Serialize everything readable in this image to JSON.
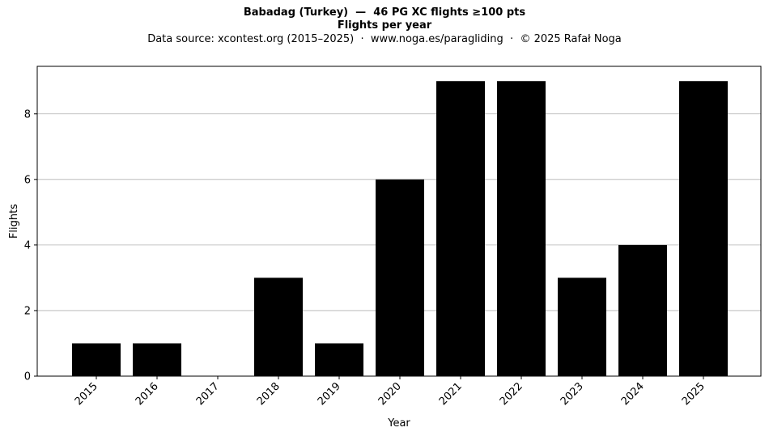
{
  "header": {
    "title": "Babadag (Turkey)  —  46 PG XC flights ≥100 pts",
    "subtitle": "Flights per year",
    "source": "Data source: xcontest.org (2015–2025)  ·  www.noga.es/paragliding  ·  © 2025 Rafał Noga"
  },
  "chart_data": {
    "type": "bar",
    "title": "Babadag (Turkey)  —  46 PG XC flights ≥100 pts",
    "subtitle": "Flights per year",
    "xlabel": "Year",
    "ylabel": "Flights",
    "categories": [
      "2015",
      "2016",
      "2017",
      "2018",
      "2019",
      "2020",
      "2021",
      "2022",
      "2023",
      "2024",
      "2025"
    ],
    "values": [
      1,
      1,
      0,
      3,
      1,
      6,
      9,
      9,
      3,
      4,
      9
    ],
    "ylim": [
      0,
      9.45
    ],
    "yticks": [
      0,
      2,
      4,
      6,
      8
    ],
    "grid": "y",
    "bar_color": "#000000",
    "grid_color": "#b0b0b0",
    "tick_label_rotation": "45"
  }
}
